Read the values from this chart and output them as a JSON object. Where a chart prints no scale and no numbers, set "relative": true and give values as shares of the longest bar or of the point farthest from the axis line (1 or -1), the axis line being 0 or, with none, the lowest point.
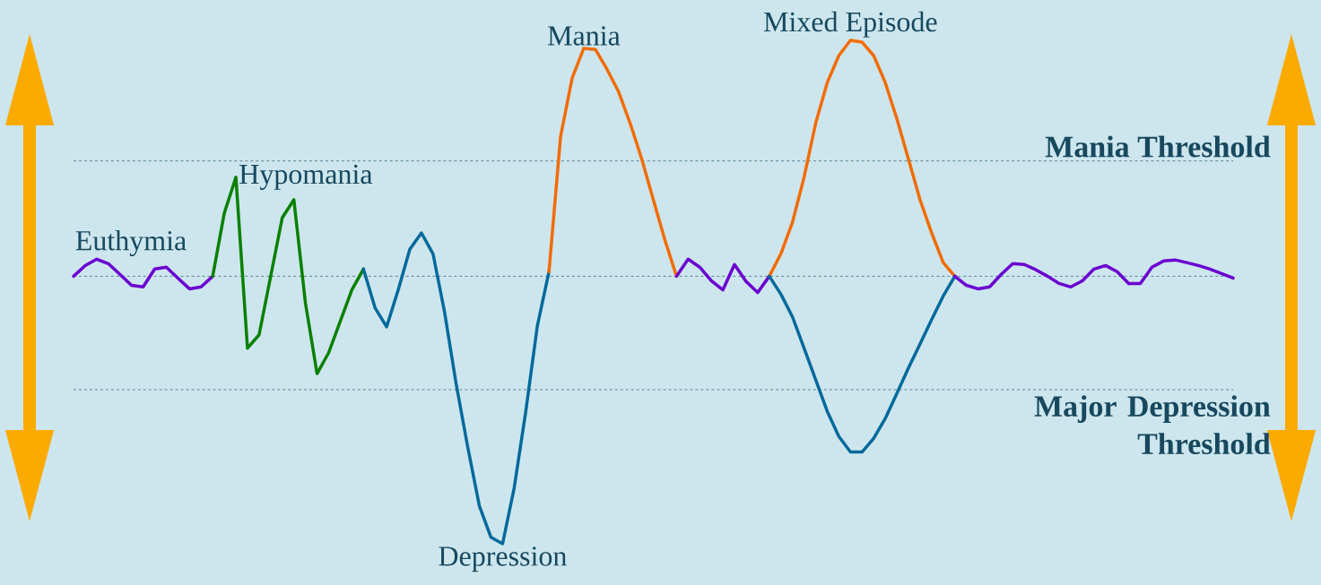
{
  "chart_data": {
    "type": "line",
    "relative": true,
    "line_style": "solid",
    "categories": [
      null,
      null,
      null,
      null,
      null,
      null,
      null,
      null,
      null,
      null,
      null,
      null,
      null,
      null,
      null,
      null,
      null,
      null,
      null,
      null,
      null,
      null,
      null,
      null,
      null,
      null,
      null,
      null,
      null,
      null,
      null,
      null,
      null,
      null,
      null,
      null,
      null,
      null,
      null,
      null,
      null,
      null,
      null,
      null,
      null,
      null,
      null,
      null,
      null,
      null,
      null,
      null,
      null,
      null,
      null,
      null,
      null,
      null,
      null,
      null,
      null,
      null,
      null,
      null,
      null,
      null,
      null,
      null,
      null,
      null,
      null,
      null,
      null,
      null,
      null,
      null,
      null,
      null,
      null,
      null,
      null,
      null,
      null,
      null,
      null,
      null,
      null,
      null,
      null,
      null,
      null,
      null,
      null,
      null,
      null,
      null,
      null,
      null,
      null,
      null,
      null
    ],
    "series": [
      {
        "name": "Euthymia",
        "color": "#6a00d0",
        "values": [
          0,
          0.04,
          0.064,
          0.047,
          0.007,
          -0.034,
          -0.04,
          0.027,
          0.034,
          -0.007,
          -0.047,
          -0.04,
          0,
          null,
          null,
          null,
          null,
          null,
          null,
          null,
          null,
          null,
          null,
          null,
          null,
          null,
          null,
          null,
          null,
          null,
          null,
          null,
          null,
          null,
          null,
          null,
          null,
          null,
          null,
          null,
          null,
          null,
          null,
          null,
          null,
          null,
          null,
          null,
          null,
          null,
          null,
          null,
          null,
          null,
          null,
          null,
          null,
          null,
          null,
          null,
          null,
          null,
          null,
          null,
          null,
          null,
          null,
          null,
          null,
          null,
          null,
          null,
          null,
          null,
          null,
          null,
          null,
          null,
          null,
          null,
          null,
          null,
          null,
          null,
          null,
          null,
          null,
          null,
          null,
          null,
          null,
          null,
          null,
          null,
          null,
          null,
          null,
          null,
          null,
          null,
          null
        ]
      },
      {
        "name": "Hypomania",
        "color": "#0a8000",
        "values": [
          null,
          null,
          null,
          null,
          null,
          null,
          null,
          null,
          null,
          null,
          null,
          null,
          0,
          0.236,
          0.37,
          -0.269,
          -0.219,
          0,
          0.219,
          0.286,
          -0.101,
          -0.364,
          -0.286,
          -0.168,
          -0.051,
          0.027,
          null,
          null,
          null,
          null,
          null,
          null,
          null,
          null,
          null,
          null,
          null,
          null,
          null,
          null,
          null,
          null,
          null,
          null,
          null,
          null,
          null,
          null,
          null,
          null,
          null,
          null,
          null,
          null,
          null,
          null,
          null,
          null,
          null,
          null,
          null,
          null,
          null,
          null,
          null,
          null,
          null,
          null,
          null,
          null,
          null,
          null,
          null,
          null,
          null,
          null,
          null,
          null,
          null,
          null,
          null,
          null,
          null,
          null,
          null,
          null,
          null,
          null,
          null,
          null,
          null,
          null,
          null,
          null,
          null,
          null,
          null,
          null,
          null,
          null,
          null
        ]
      },
      {
        "name": "Depression",
        "color": "#04699b",
        "values": [
          null,
          null,
          null,
          null,
          null,
          null,
          null,
          null,
          null,
          null,
          null,
          null,
          null,
          null,
          null,
          null,
          null,
          null,
          null,
          null,
          null,
          null,
          null,
          null,
          null,
          0.027,
          -0.118,
          -0.189,
          -0.051,
          0.101,
          0.162,
          0.084,
          -0.135,
          -0.404,
          -0.64,
          -0.859,
          -0.976,
          -1,
          -0.791,
          -0.505,
          -0.185,
          0.017,
          null,
          null,
          null,
          null,
          null,
          null,
          null,
          null,
          null,
          null,
          null,
          null,
          null,
          null,
          null,
          null,
          null,
          null,
          null,
          null,
          null,
          null,
          null,
          null,
          null,
          null,
          null,
          null,
          null,
          null,
          null,
          null,
          null,
          null,
          null,
          null,
          null,
          null,
          null,
          null,
          null,
          null,
          null,
          null,
          null,
          null,
          null,
          null,
          null,
          null,
          null,
          null,
          null,
          null,
          null,
          null,
          null,
          null,
          null
        ]
      },
      {
        "name": "Mania",
        "color": "#f26c04",
        "values": [
          null,
          null,
          null,
          null,
          null,
          null,
          null,
          null,
          null,
          null,
          null,
          null,
          null,
          null,
          null,
          null,
          null,
          null,
          null,
          null,
          null,
          null,
          null,
          null,
          null,
          null,
          null,
          null,
          null,
          null,
          null,
          null,
          null,
          null,
          null,
          null,
          null,
          null,
          null,
          null,
          null,
          0.017,
          0.522,
          0.741,
          0.852,
          0.848,
          0.774,
          0.69,
          0.572,
          0.438,
          0.286,
          0.135,
          0,
          null,
          null,
          null,
          null,
          null,
          null,
          null,
          null,
          null,
          null,
          null,
          null,
          null,
          null,
          null,
          null,
          null,
          null,
          null,
          null,
          null,
          null,
          null,
          null,
          null,
          null,
          null,
          null,
          null,
          null,
          null,
          null,
          null,
          null,
          null,
          null,
          null,
          null,
          null,
          null,
          null,
          null,
          null,
          null,
          null,
          null,
          null,
          null
        ]
      },
      {
        "color": "#6a00d0",
        "values": [
          null,
          null,
          null,
          null,
          null,
          null,
          null,
          null,
          null,
          null,
          null,
          null,
          null,
          null,
          null,
          null,
          null,
          null,
          null,
          null,
          null,
          null,
          null,
          null,
          null,
          null,
          null,
          null,
          null,
          null,
          null,
          null,
          null,
          null,
          null,
          null,
          null,
          null,
          null,
          null,
          null,
          null,
          null,
          null,
          null,
          null,
          null,
          null,
          null,
          null,
          null,
          null,
          0,
          0.064,
          0.034,
          -0.017,
          -0.051,
          0.044,
          -0.02,
          -0.061,
          0,
          null,
          null,
          null,
          null,
          null,
          null,
          null,
          null,
          null,
          null,
          null,
          null,
          null,
          null,
          null,
          null,
          null,
          null,
          null,
          null,
          null,
          null,
          null,
          null,
          null,
          null,
          null,
          null,
          null,
          null,
          null,
          null,
          null,
          null,
          null,
          null,
          null,
          null,
          null,
          null
        ]
      },
      {
        "name": "Mixed Episode",
        "color": "#f26c04",
        "values": [
          null,
          null,
          null,
          null,
          null,
          null,
          null,
          null,
          null,
          null,
          null,
          null,
          null,
          null,
          null,
          null,
          null,
          null,
          null,
          null,
          null,
          null,
          null,
          null,
          null,
          null,
          null,
          null,
          null,
          null,
          null,
          null,
          null,
          null,
          null,
          null,
          null,
          null,
          null,
          null,
          null,
          null,
          null,
          null,
          null,
          null,
          null,
          null,
          null,
          null,
          null,
          null,
          null,
          null,
          null,
          null,
          null,
          null,
          null,
          null,
          0,
          0.084,
          0.202,
          0.37,
          0.572,
          0.724,
          0.825,
          0.882,
          0.875,
          0.825,
          0.724,
          0.589,
          0.438,
          0.286,
          0.162,
          0.051,
          0,
          null,
          null,
          null,
          null,
          null,
          null,
          null,
          null,
          null,
          null,
          null,
          null,
          null,
          null,
          null,
          null,
          null,
          null,
          null,
          null,
          null,
          null,
          null,
          null
        ]
      },
      {
        "color": "#04699b",
        "values": [
          null,
          null,
          null,
          null,
          null,
          null,
          null,
          null,
          null,
          null,
          null,
          null,
          null,
          null,
          null,
          null,
          null,
          null,
          null,
          null,
          null,
          null,
          null,
          null,
          null,
          null,
          null,
          null,
          null,
          null,
          null,
          null,
          null,
          null,
          null,
          null,
          null,
          null,
          null,
          null,
          null,
          null,
          null,
          null,
          null,
          null,
          null,
          null,
          null,
          null,
          null,
          null,
          null,
          null,
          null,
          null,
          null,
          null,
          null,
          null,
          0,
          -0.067,
          -0.152,
          -0.269,
          -0.387,
          -0.505,
          -0.599,
          -0.657,
          -0.657,
          -0.606,
          -0.532,
          -0.438,
          -0.343,
          -0.253,
          -0.162,
          -0.074,
          0,
          null,
          null,
          null,
          null,
          null,
          null,
          null,
          null,
          null,
          null,
          null,
          null,
          null,
          null,
          null,
          null,
          null,
          null,
          null,
          null,
          null,
          null,
          null,
          null
        ]
      },
      {
        "color": "#6a00d0",
        "values": [
          null,
          null,
          null,
          null,
          null,
          null,
          null,
          null,
          null,
          null,
          null,
          null,
          null,
          null,
          null,
          null,
          null,
          null,
          null,
          null,
          null,
          null,
          null,
          null,
          null,
          null,
          null,
          null,
          null,
          null,
          null,
          null,
          null,
          null,
          null,
          null,
          null,
          null,
          null,
          null,
          null,
          null,
          null,
          null,
          null,
          null,
          null,
          null,
          null,
          null,
          null,
          null,
          null,
          null,
          null,
          null,
          null,
          null,
          null,
          null,
          null,
          null,
          null,
          null,
          null,
          null,
          null,
          null,
          null,
          null,
          null,
          null,
          null,
          null,
          null,
          null,
          0,
          -0.034,
          -0.047,
          -0.04,
          0.007,
          0.047,
          0.044,
          0.024,
          0,
          -0.027,
          -0.04,
          -0.017,
          0.027,
          0.04,
          0.017,
          -0.027,
          -0.027,
          0.034,
          0.057,
          0.061,
          0.051,
          0.04,
          0.027,
          0.01,
          -0.007
        ]
      }
    ],
    "ref_lines": [
      {
        "axis": "y",
        "value": 0.431,
        "label": "Mania Threshold",
        "color": "#3a6b80",
        "line_style": "dashed"
      },
      {
        "axis": "y",
        "value": 0,
        "color": "#3a6b80",
        "line_style": "dashed"
      },
      {
        "axis": "y",
        "value": -0.424,
        "label": "Major Depression Threshold",
        "color": "#3a6b80",
        "line_style": "dashed"
      }
    ]
  }
}
